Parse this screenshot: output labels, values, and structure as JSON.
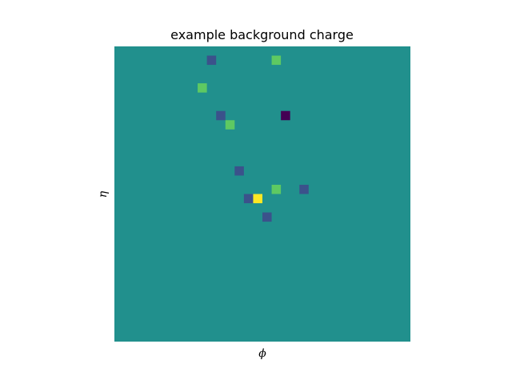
{
  "chart_data": {
    "type": "heatmap",
    "title": "example background charge",
    "xlabel": "ϕ",
    "ylabel": "η",
    "grid": false,
    "colormap": "viridis",
    "background_color": "#21908d",
    "xlim": [
      0,
      32
    ],
    "ylim": [
      0,
      32
    ],
    "cells": [
      {
        "col": 10,
        "row": 1,
        "color": "#3b528b"
      },
      {
        "col": 17,
        "row": 1,
        "color": "#5ec962"
      },
      {
        "col": 9,
        "row": 4,
        "color": "#5ec962"
      },
      {
        "col": 11,
        "row": 7,
        "color": "#3b528b"
      },
      {
        "col": 18,
        "row": 7,
        "color": "#440154"
      },
      {
        "col": 12,
        "row": 8,
        "color": "#5ec962"
      },
      {
        "col": 13,
        "row": 13,
        "color": "#3b528b"
      },
      {
        "col": 17,
        "row": 15,
        "color": "#5ec962"
      },
      {
        "col": 20,
        "row": 15,
        "color": "#3b528b"
      },
      {
        "col": 14,
        "row": 16,
        "color": "#3b528b"
      },
      {
        "col": 15,
        "row": 16,
        "color": "#fde725"
      },
      {
        "col": 16,
        "row": 18,
        "color": "#3b528b"
      }
    ]
  }
}
